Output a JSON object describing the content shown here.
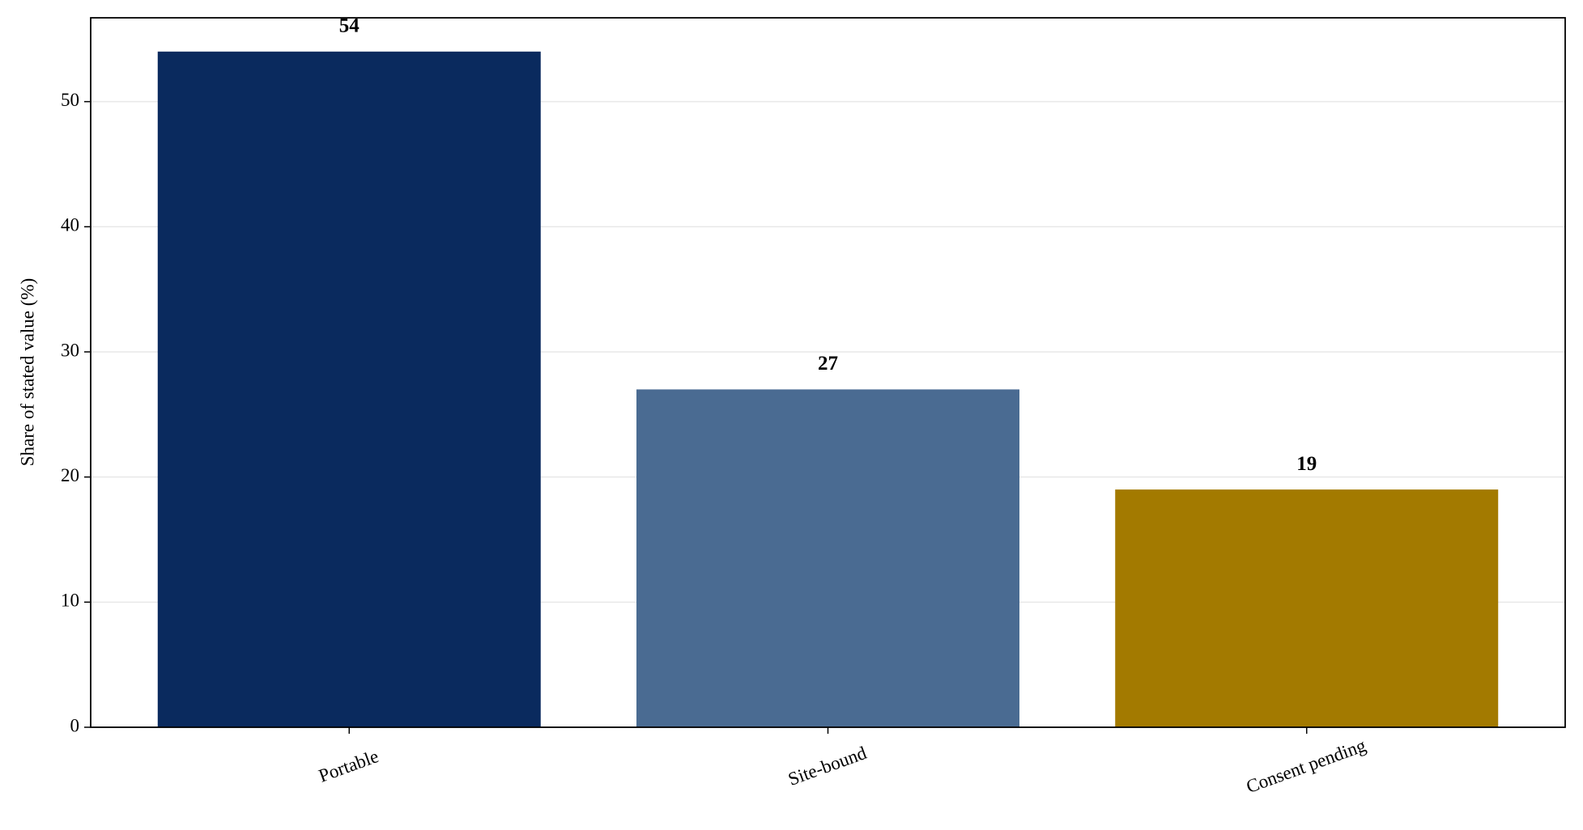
{
  "chart_data": {
    "type": "bar",
    "y_label": "Share of stated value (%)",
    "categories": [
      "Portable",
      "Site-bound",
      "Consent pending"
    ],
    "values": [
      54,
      27,
      19
    ],
    "colors": [
      "#0a2a5e",
      "#4a6b92",
      "#a37a00"
    ],
    "ylim": [
      0,
      56.7
    ],
    "yticks": [
      0,
      10,
      20,
      30,
      40,
      50
    ],
    "grid": true
  }
}
